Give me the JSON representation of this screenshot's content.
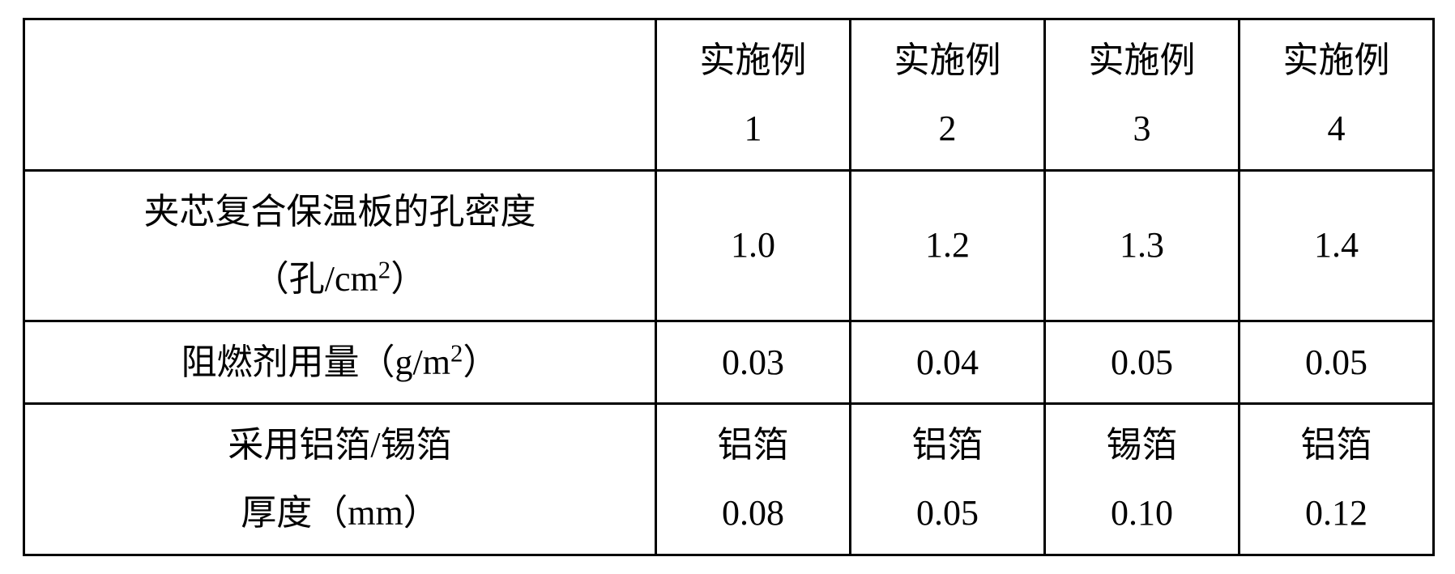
{
  "table": {
    "border_color": "#000000",
    "background_color": "#ffffff",
    "text_color": "#000000",
    "font_size_pt": 33,
    "header": {
      "empty_label": "",
      "col_prefix": "实施例",
      "cols": [
        "1",
        "2",
        "3",
        "4"
      ]
    },
    "rows": [
      {
        "label_line1": "夹芯复合保温板的孔密度",
        "label_line2_html": "（孔/cm<sup>2</sup>）",
        "values": [
          "1.0",
          "1.2",
          "1.3",
          "1.4"
        ]
      },
      {
        "label_line1_html": "阻燃剂用量（g/m<sup>2</sup>）",
        "values": [
          "0.03",
          "0.04",
          "0.05",
          "0.05"
        ]
      },
      {
        "label_line1": "采用铝箔/锡箔",
        "label_line2": "厚度（mm）",
        "values_line1": [
          "铝箔",
          "铝箔",
          "锡箔",
          "铝箔"
        ],
        "values_line2": [
          "0.08",
          "0.05",
          "0.10",
          "0.12"
        ]
      }
    ]
  }
}
